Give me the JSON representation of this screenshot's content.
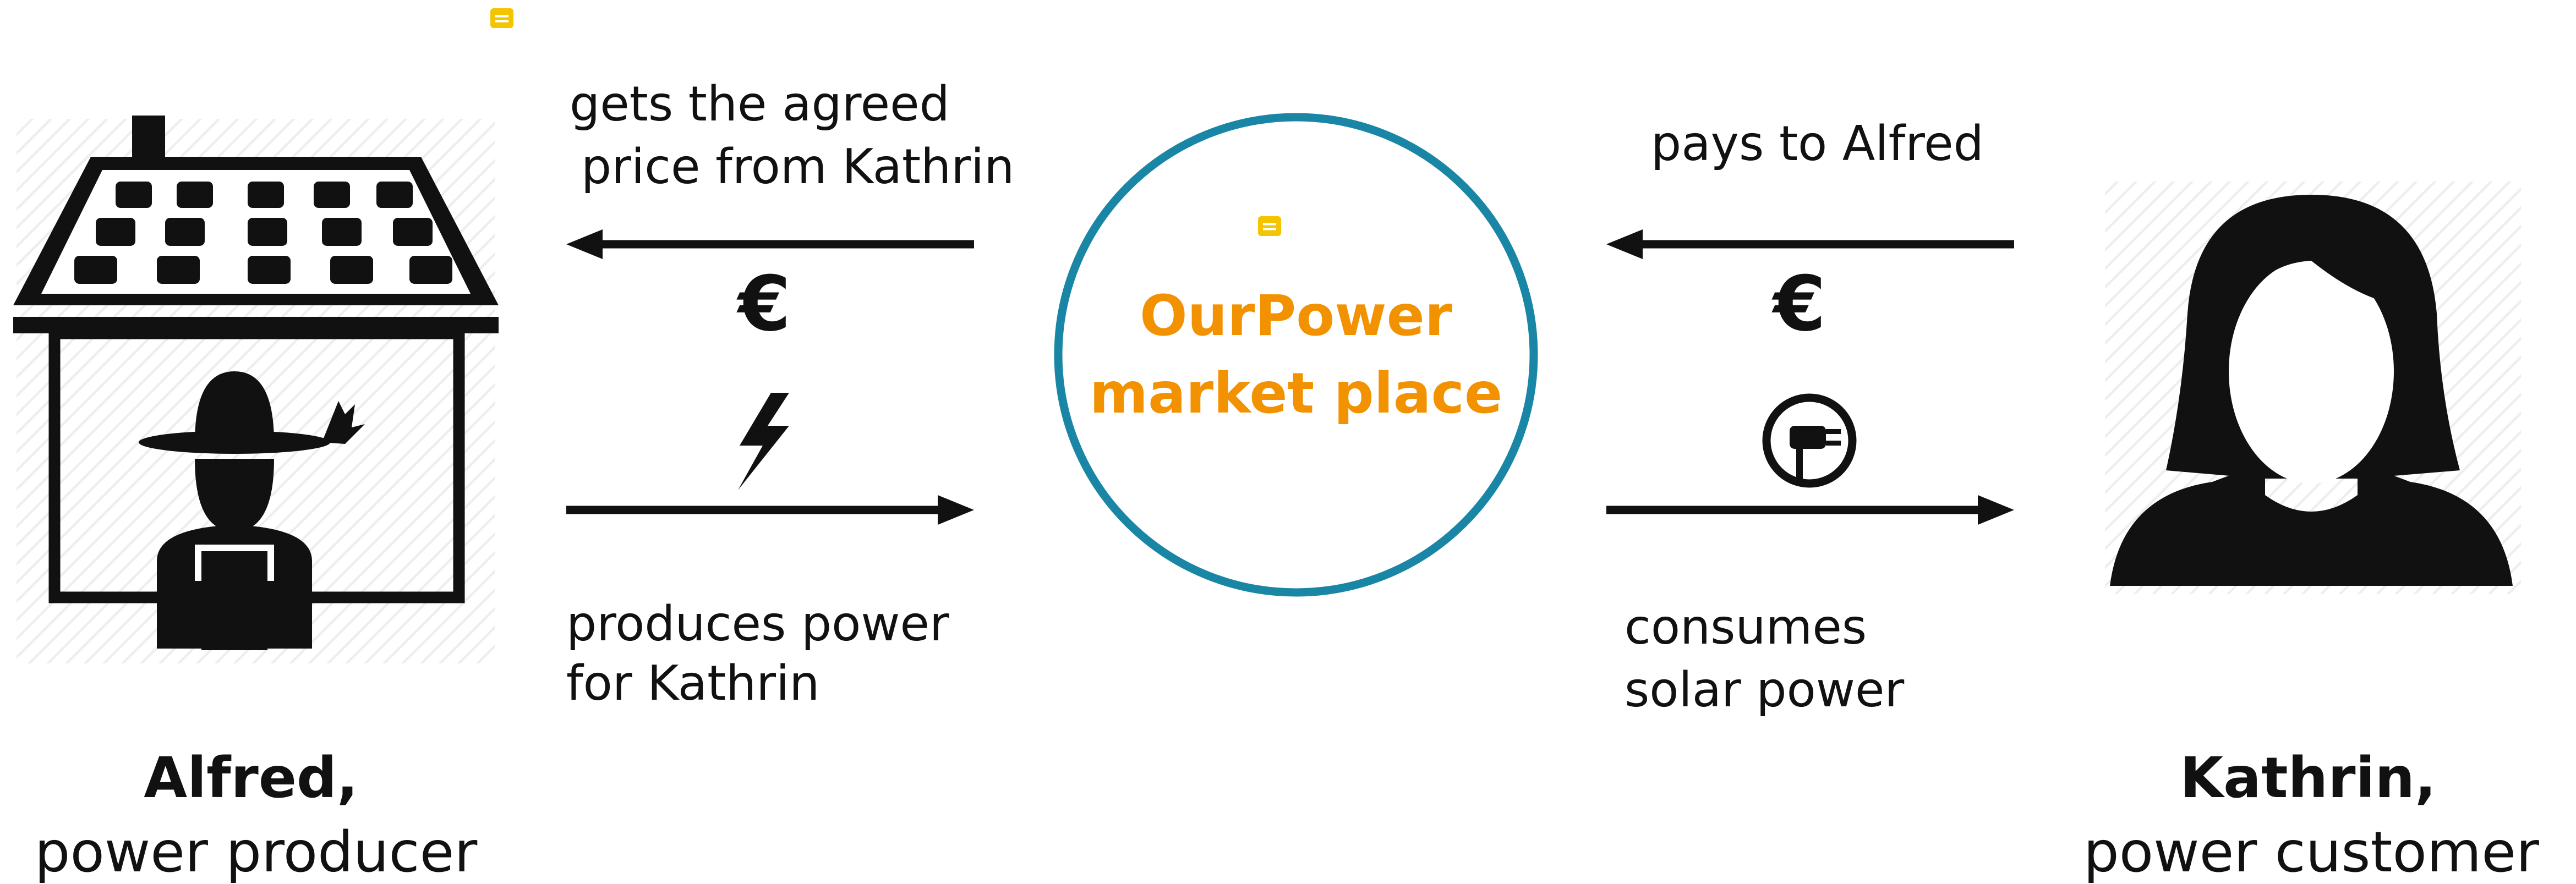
{
  "left_flow": {
    "top_label": [
      "gets the agreed",
      "price from Kathrin"
    ],
    "currency": "€",
    "bottom_label": [
      "produces power",
      "for Kathrin"
    ]
  },
  "right_flow": {
    "top_label": [
      "pays to Alfred"
    ],
    "currency": "€",
    "bottom_label": [
      "consumes",
      "solar power"
    ]
  },
  "center": {
    "title": [
      "OurPower",
      "market place"
    ]
  },
  "producer": {
    "name": "Alfred,",
    "role": "power producer"
  },
  "customer": {
    "name": "Kathrin,",
    "role": "power customer"
  }
}
